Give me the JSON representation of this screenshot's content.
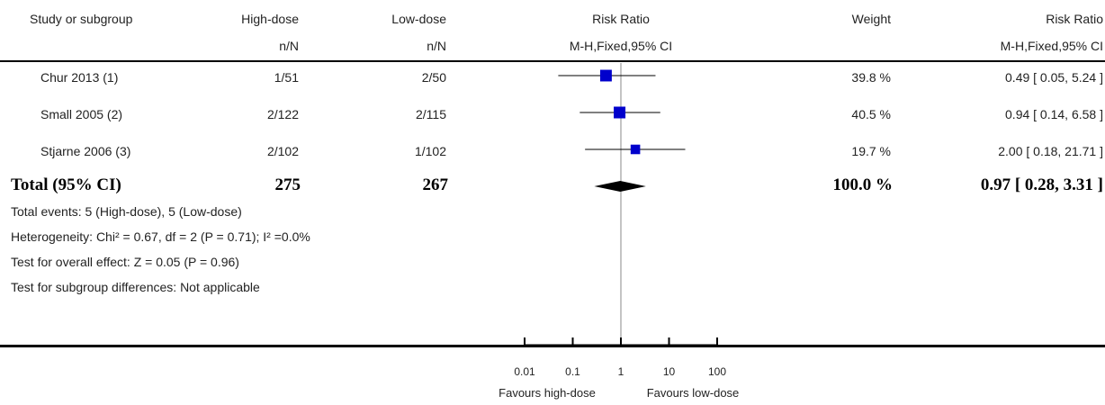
{
  "header": {
    "study": "Study or subgroup",
    "group1": "High-dose",
    "group1_sub": "n/N",
    "group2": "Low-dose",
    "group2_sub": "n/N",
    "plot_title": "Risk Ratio",
    "plot_sub": "M-H,Fixed,95% CI",
    "weight": "Weight",
    "rr_title": "Risk Ratio",
    "rr_sub": "M-H,Fixed,95% CI"
  },
  "studies": [
    {
      "name": "Chur 2013 (1)",
      "high": "1/51",
      "low": "2/50",
      "weight": "39.8 %",
      "ci": "0.49 [ 0.05, 5.24 ]"
    },
    {
      "name": "Small 2005 (2)",
      "high": "2/122",
      "low": "2/115",
      "weight": "40.5 %",
      "ci": "0.94 [ 0.14, 6.58 ]"
    },
    {
      "name": "Stjarne 2006 (3)",
      "high": "2/102",
      "low": "1/102",
      "weight": "19.7 %",
      "ci": "2.00 [ 0.18, 21.71 ]"
    }
  ],
  "total": {
    "label": "Total (95% CI)",
    "high": "275",
    "low": "267",
    "weight": "100.0 %",
    "ci": "0.97 [ 0.28, 3.31 ]"
  },
  "notes": {
    "events": "Total events: 5 (High-dose), 5 (Low-dose)",
    "heterogeneity": "Heterogeneity: Chi² = 0.67, df = 2 (P = 0.71); I² =0.0%",
    "overall": "Test for overall effect: Z = 0.05 (P = 0.96)",
    "subgroup": "Test for subgroup differences: Not applicable"
  },
  "axis": {
    "favours_left": "Favours high-dose",
    "favours_right": "Favours low-dose"
  },
  "chart_data": {
    "type": "scatter",
    "scale": "log",
    "xlim": [
      0.01,
      100
    ],
    "ticks": [
      {
        "value": 0.01,
        "label": "0.01"
      },
      {
        "value": 0.1,
        "label": "0.1"
      },
      {
        "value": 1,
        "label": "1"
      },
      {
        "value": 10,
        "label": "10"
      },
      {
        "value": 100,
        "label": "100"
      }
    ],
    "points": [
      {
        "name": "Chur 2013 (1)",
        "rr": 0.49,
        "lower": 0.05,
        "upper": 5.24,
        "weight": 39.8
      },
      {
        "name": "Small 2005 (2)",
        "rr": 0.94,
        "lower": 0.14,
        "upper": 6.58,
        "weight": 40.5
      },
      {
        "name": "Stjarne 2006 (3)",
        "rr": 2.0,
        "lower": 0.18,
        "upper": 21.71,
        "weight": 19.7
      }
    ],
    "pooled": {
      "rr": 0.97,
      "lower": 0.28,
      "upper": 3.31
    },
    "marker_color": "#0000cc"
  }
}
